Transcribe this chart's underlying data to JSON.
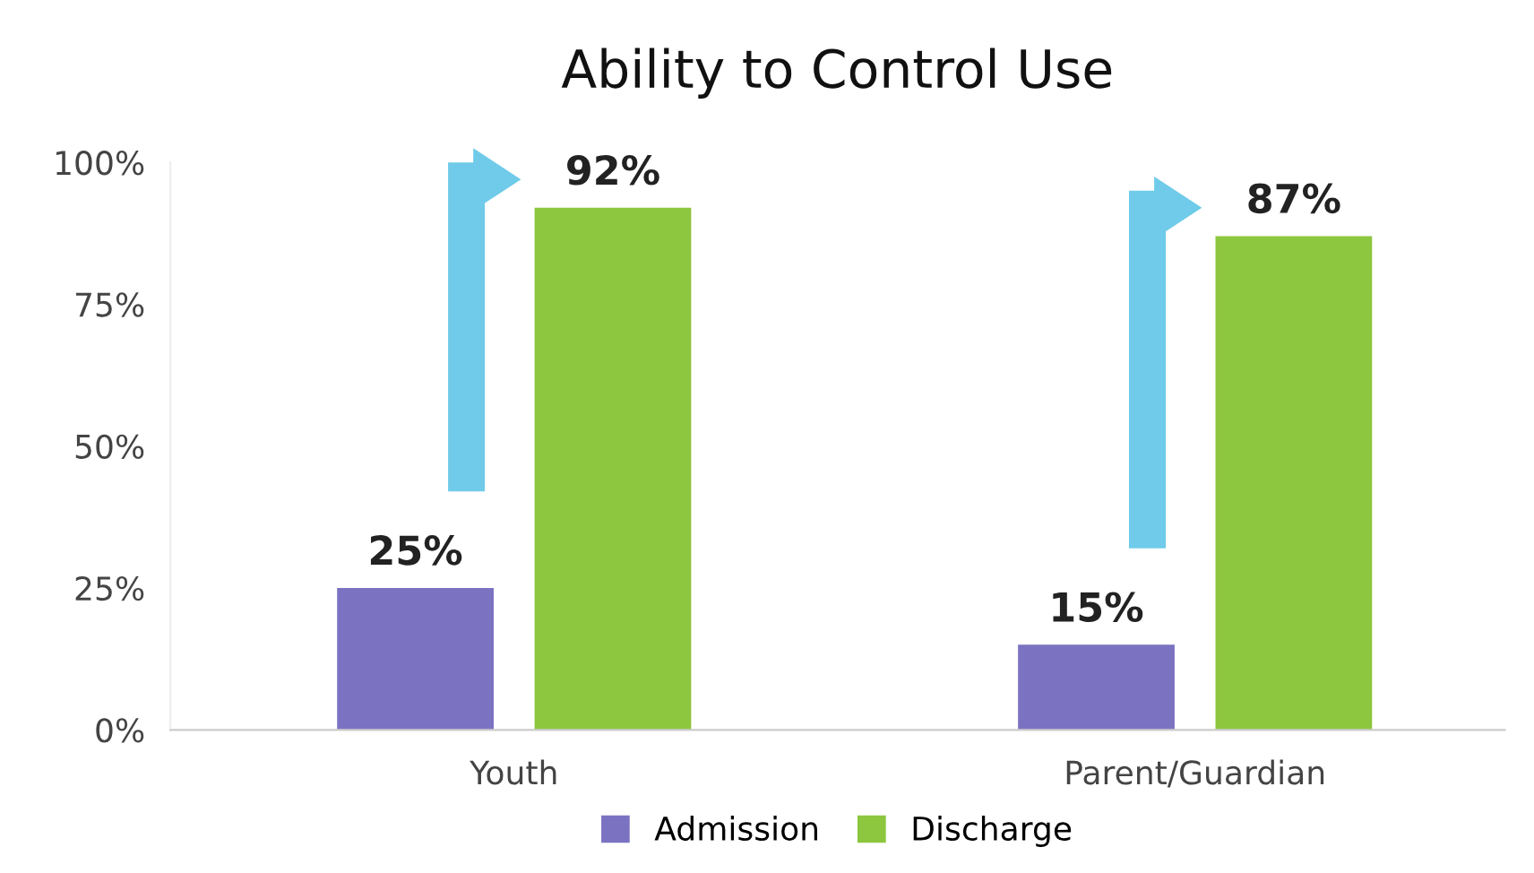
{
  "chart_data": {
    "type": "bar",
    "title": "Ability to Control Use",
    "categories": [
      "Youth",
      "Parent/Guardian"
    ],
    "series": [
      {
        "name": "Admission",
        "color": "#7b72c2",
        "values": [
          25,
          15
        ],
        "value_labels": [
          "25%",
          "15%"
        ]
      },
      {
        "name": "Discharge",
        "color": "#8dc63f",
        "values": [
          92,
          87
        ],
        "value_labels": [
          "92%",
          "87%"
        ]
      }
    ],
    "ylim": [
      0,
      100
    ],
    "yticks": [
      {
        "value": 0,
        "label": "0%"
      },
      {
        "value": 25,
        "label": "25%"
      },
      {
        "value": 50,
        "label": "50%"
      },
      {
        "value": 75,
        "label": "75%"
      },
      {
        "value": 100,
        "label": "100%"
      }
    ],
    "grid": false,
    "legend": "bottom"
  }
}
